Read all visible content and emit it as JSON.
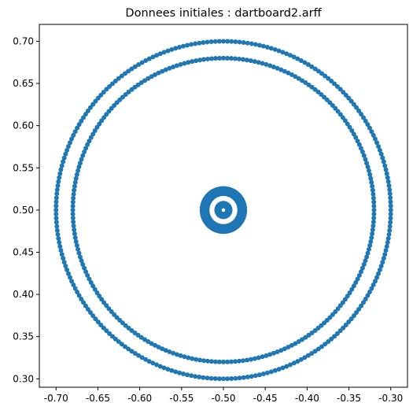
{
  "chart_data": {
    "type": "scatter",
    "title": "Donnees initiales : dartboard2.arff",
    "xlabel": "",
    "ylabel": "",
    "xlim": [
      -0.72,
      -0.28
    ],
    "ylim": [
      0.29,
      0.72
    ],
    "x_ticks": [
      "-0.70",
      "-0.65",
      "-0.60",
      "-0.55",
      "-0.50",
      "-0.45",
      "-0.40",
      "-0.35",
      "-0.30"
    ],
    "x_tick_values": [
      -0.7,
      -0.65,
      -0.6,
      -0.55,
      -0.5,
      -0.45,
      -0.4,
      -0.35,
      -0.3
    ],
    "y_ticks": [
      "0.30",
      "0.35",
      "0.40",
      "0.45",
      "0.50",
      "0.55",
      "0.60",
      "0.65",
      "0.70"
    ],
    "y_tick_values": [
      0.3,
      0.35,
      0.4,
      0.45,
      0.5,
      0.55,
      0.6,
      0.65,
      0.7
    ],
    "grid": false,
    "marker_color": "#1f77b4",
    "rings": [
      {
        "center": [
          -0.5,
          0.5
        ],
        "radius": 0.2,
        "points": 260
      },
      {
        "center": [
          -0.5,
          0.5
        ],
        "radius": 0.18,
        "points": 240
      },
      {
        "center": [
          -0.5,
          0.5
        ],
        "radius": 0.0255,
        "points": 140
      },
      {
        "center": [
          -0.5,
          0.5
        ],
        "radius": 0.0225,
        "points": 140
      },
      {
        "center": [
          -0.5,
          0.5
        ],
        "radius": 0.0195,
        "points": 140
      },
      {
        "center": [
          -0.5,
          0.5
        ],
        "radius": 0.008,
        "points": 50
      },
      {
        "center": [
          -0.5,
          0.5
        ],
        "radius": 0.005,
        "points": 40
      }
    ]
  }
}
